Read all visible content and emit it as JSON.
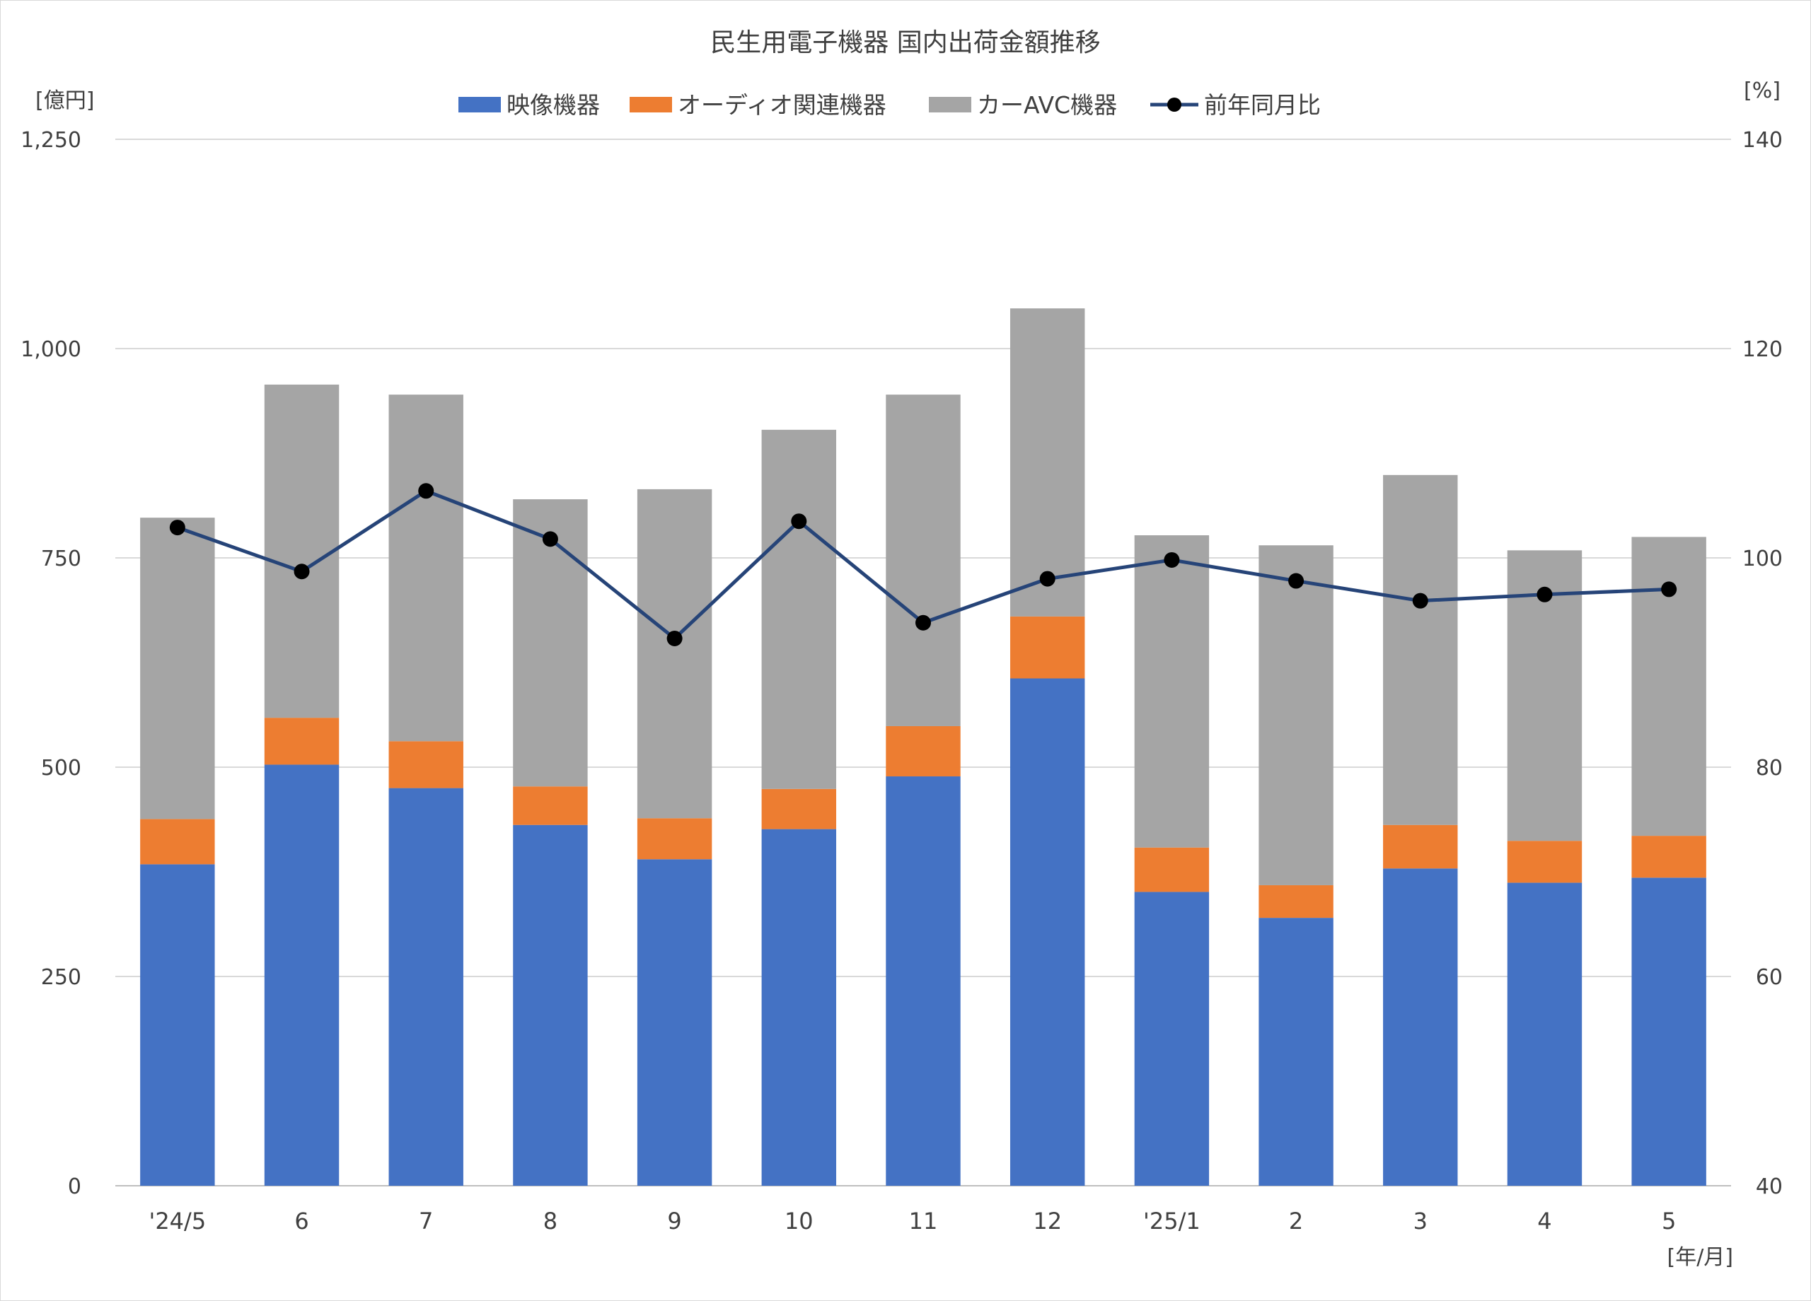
{
  "chart_data": {
    "type": "bar",
    "stacked": true,
    "title": "民生用電子機器 国内出荷金額推移",
    "left_unit_label": "[億円]",
    "right_unit_label": "[%]",
    "x_unit_label": "[年/月]",
    "categories": [
      "'24/5",
      "6",
      "7",
      "8",
      "9",
      "10",
      "11",
      "12",
      "'25/1",
      "2",
      "3",
      "4",
      "5"
    ],
    "y_left": {
      "min": 0,
      "max": 1250,
      "ticks": [
        0,
        250,
        500,
        750,
        "1,000",
        "1,250"
      ],
      "tick_values": [
        0,
        250,
        500,
        750,
        1000,
        1250
      ]
    },
    "y_right": {
      "min": 40,
      "max": 140,
      "ticks": [
        40,
        60,
        80,
        100,
        120,
        140
      ],
      "tick_values": [
        40,
        60,
        80,
        100,
        120,
        140
      ]
    },
    "grid": true,
    "legend_position": "top",
    "series": [
      {
        "name": "映像機器",
        "color": "#4472c4",
        "axis": "left",
        "kind": "bar",
        "values": [
          384,
          503,
          475,
          431,
          390,
          426,
          489,
          606,
          351,
          320,
          379,
          362,
          368
        ]
      },
      {
        "name": "オーディオ関連機器",
        "color": "#ed7d31",
        "axis": "left",
        "kind": "bar",
        "values": [
          54,
          56,
          56,
          46,
          49,
          48,
          60,
          74,
          53,
          39,
          52,
          50,
          50
        ]
      },
      {
        "name": "カーAVC機器",
        "color": "#a5a5a5",
        "axis": "left",
        "kind": "bar",
        "values": [
          360,
          398,
          414,
          343,
          393,
          429,
          396,
          368,
          373,
          406,
          418,
          347,
          357
        ]
      },
      {
        "name": "前年同月比",
        "color": "#264478",
        "axis": "right",
        "kind": "line",
        "values": [
          102.9,
          98.7,
          106.4,
          101.8,
          92.3,
          103.5,
          93.8,
          98.0,
          99.8,
          97.8,
          95.9,
          96.5,
          97.0
        ]
      }
    ]
  }
}
